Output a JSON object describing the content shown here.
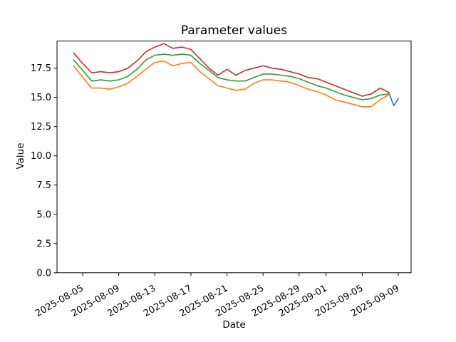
{
  "figure": {
    "background_color": "#ffffff",
    "text_color": "#000000"
  },
  "chart_data": {
    "type": "line",
    "title": "Parameter values",
    "xlabel": "Date",
    "ylabel": "Value",
    "grid": false,
    "legend": "none",
    "x_start_date": "2025-08-04",
    "x_unit": "days",
    "xlim_days": [
      -1.85,
      37.42
    ],
    "ylim": [
      0,
      19.82
    ],
    "y_ticks": [
      "0.0",
      "2.5",
      "5.0",
      "7.5",
      "10.0",
      "12.5",
      "15.0",
      "17.5"
    ],
    "x_ticks": [
      {
        "label": "2025-08-05",
        "day": 1
      },
      {
        "label": "2025-08-09",
        "day": 5
      },
      {
        "label": "2025-08-13",
        "day": 9
      },
      {
        "label": "2025-08-17",
        "day": 13
      },
      {
        "label": "2025-08-21",
        "day": 17
      },
      {
        "label": "2025-08-25",
        "day": 21
      },
      {
        "label": "2025-08-29",
        "day": 25
      },
      {
        "label": "2025-09-01",
        "day": 28
      },
      {
        "label": "2025-09-05",
        "day": 32
      },
      {
        "label": "2025-09-09",
        "day": 36
      }
    ],
    "series": [
      {
        "name": "series-blue",
        "color": "#1f77b4",
        "x_days": [
          35,
          35.5,
          36
        ],
        "values": [
          15.3,
          14.3,
          14.9
        ]
      },
      {
        "name": "series-orange",
        "color": "#ff7f0e",
        "x_days": [
          0,
          1,
          2,
          3,
          4,
          5,
          6,
          7,
          8,
          9,
          10,
          11,
          12,
          13,
          14,
          15,
          16,
          17,
          18,
          19,
          20,
          21,
          22,
          23,
          24,
          25,
          26,
          27,
          28,
          29,
          30,
          31,
          32,
          33,
          34,
          35
        ],
        "values": [
          17.7,
          16.7,
          15.8,
          15.8,
          15.7,
          15.9,
          16.2,
          16.8,
          17.4,
          18.0,
          18.1,
          17.7,
          17.9,
          18.0,
          17.2,
          16.6,
          16.0,
          15.8,
          15.6,
          15.7,
          16.2,
          16.5,
          16.5,
          16.4,
          16.3,
          16.0,
          15.7,
          15.5,
          15.2,
          14.8,
          14.6,
          14.4,
          14.2,
          14.2,
          14.8,
          15.25
        ]
      },
      {
        "name": "series-green",
        "color": "#2ca02c",
        "x_days": [
          0,
          1,
          2,
          3,
          4,
          5,
          6,
          7,
          8,
          9,
          10,
          11,
          12,
          13,
          14,
          15,
          16,
          17,
          18,
          19,
          20,
          21,
          22,
          23,
          24,
          25,
          26,
          27,
          28,
          29,
          30,
          31,
          32,
          33,
          34,
          35
        ],
        "values": [
          18.2,
          17.3,
          16.4,
          16.5,
          16.4,
          16.5,
          16.8,
          17.4,
          18.2,
          18.6,
          18.7,
          18.6,
          18.7,
          18.6,
          17.9,
          17.3,
          16.7,
          16.5,
          16.4,
          16.4,
          16.7,
          17.0,
          17.0,
          16.9,
          16.8,
          16.6,
          16.3,
          16.0,
          15.8,
          15.5,
          15.2,
          15.0,
          14.8,
          14.9,
          15.2,
          15.3
        ]
      },
      {
        "name": "series-red",
        "color": "#d62728",
        "x_days": [
          0,
          1,
          2,
          3,
          4,
          5,
          6,
          7,
          8,
          9,
          10,
          11,
          12,
          13,
          14,
          15,
          16,
          17,
          18,
          19,
          20,
          21,
          22,
          23,
          24,
          25,
          26,
          27,
          28,
          29,
          30,
          31,
          32,
          33,
          34,
          35
        ],
        "values": [
          18.8,
          17.9,
          17.1,
          17.2,
          17.1,
          17.2,
          17.5,
          18.1,
          18.9,
          19.3,
          19.6,
          19.2,
          19.3,
          19.1,
          18.3,
          17.5,
          16.9,
          17.4,
          16.9,
          17.3,
          17.5,
          17.7,
          17.5,
          17.4,
          17.2,
          17.0,
          16.7,
          16.6,
          16.3,
          16.0,
          15.7,
          15.4,
          15.1,
          15.3,
          15.8,
          15.4
        ]
      }
    ]
  }
}
